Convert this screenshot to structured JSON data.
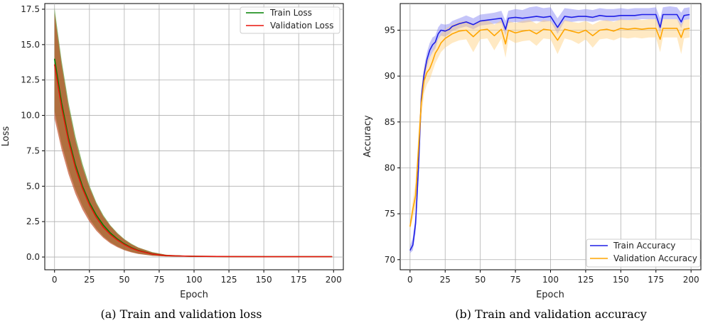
{
  "chart_data": [
    {
      "type": "line",
      "caption": "(a) Train and validation loss",
      "xlabel": "Epoch",
      "ylabel": "Loss",
      "xlim": [
        -7,
        207
      ],
      "ylim": [
        -0.9,
        17.9
      ],
      "xticks": [
        0,
        25,
        50,
        75,
        100,
        125,
        150,
        175,
        200
      ],
      "yticks": [
        0.0,
        2.5,
        5.0,
        7.5,
        10.0,
        12.5,
        15.0,
        17.5
      ],
      "ytick_labels": [
        "0.0",
        "2.5",
        "5.0",
        "7.5",
        "10.0",
        "12.5",
        "15.0",
        "17.5"
      ],
      "grid": true,
      "legend_position": "top-right",
      "series": [
        {
          "name": "Train Loss",
          "color": "#008000",
          "band_color": "#5a9a32",
          "x": [
            0,
            5,
            10,
            15,
            20,
            25,
            30,
            35,
            40,
            45,
            50,
            55,
            60,
            70,
            80,
            100,
            125,
            150,
            175,
            199
          ],
          "y": [
            14.0,
            10.9,
            8.4,
            6.5,
            5.0,
            3.85,
            2.95,
            2.25,
            1.7,
            1.27,
            0.93,
            0.67,
            0.47,
            0.22,
            0.1,
            0.05,
            0.03,
            0.02,
            0.02,
            0.02
          ],
          "lower": [
            10.3,
            8.0,
            6.2,
            4.75,
            3.6,
            2.7,
            2.0,
            1.45,
            1.05,
            0.75,
            0.52,
            0.36,
            0.24,
            0.1,
            0.05,
            0.02,
            0.01,
            0.01,
            0.01,
            0.01
          ],
          "upper": [
            17.6,
            13.9,
            10.9,
            8.5,
            6.6,
            5.05,
            3.85,
            2.95,
            2.25,
            1.7,
            1.27,
            0.94,
            0.68,
            0.35,
            0.16,
            0.07,
            0.04,
            0.03,
            0.03,
            0.03
          ]
        },
        {
          "name": "Validation Loss",
          "color": "#e8140c",
          "band_color": "#c0502a",
          "x": [
            0,
            5,
            10,
            15,
            20,
            25,
            30,
            35,
            40,
            45,
            50,
            55,
            60,
            70,
            80,
            100,
            125,
            150,
            175,
            199
          ],
          "y": [
            13.6,
            10.6,
            8.2,
            6.3,
            4.85,
            3.7,
            2.8,
            2.1,
            1.6,
            1.2,
            0.88,
            0.63,
            0.45,
            0.21,
            0.1,
            0.05,
            0.03,
            0.02,
            0.02,
            0.02
          ],
          "lower": [
            9.8,
            7.6,
            5.85,
            4.45,
            3.35,
            2.5,
            1.85,
            1.35,
            0.97,
            0.69,
            0.48,
            0.33,
            0.22,
            0.09,
            0.04,
            0.02,
            0.01,
            0.01,
            0.01,
            0.01
          ],
          "upper": [
            17.2,
            13.6,
            10.6,
            8.2,
            6.35,
            4.9,
            3.75,
            2.85,
            2.2,
            1.65,
            1.23,
            0.9,
            0.66,
            0.33,
            0.16,
            0.07,
            0.04,
            0.03,
            0.03,
            0.03
          ]
        }
      ]
    },
    {
      "type": "line",
      "caption": "(b) Train and validation accuracy",
      "xlabel": "Epoch",
      "ylabel": "Accuracy",
      "xlim": [
        -7,
        207
      ],
      "ylim": [
        68.9,
        97.9
      ],
      "xticks": [
        0,
        25,
        50,
        75,
        100,
        125,
        150,
        175,
        200
      ],
      "yticks": [
        70,
        75,
        80,
        85,
        90,
        95
      ],
      "ytick_labels": [
        "70",
        "75",
        "80",
        "85",
        "90",
        "95"
      ],
      "grid": true,
      "legend_position": "bottom-right",
      "series": [
        {
          "name": "Train Accuracy",
          "color": "#1f1fe6",
          "band_color": "#7f7ff2",
          "x": [
            0,
            2,
            4,
            6,
            8,
            10,
            12,
            14,
            16,
            18,
            20,
            22,
            25,
            28,
            30,
            35,
            40,
            45,
            50,
            55,
            60,
            65,
            68,
            70,
            75,
            80,
            85,
            90,
            95,
            100,
            105,
            110,
            115,
            120,
            125,
            130,
            135,
            140,
            145,
            150,
            155,
            160,
            165,
            170,
            175,
            178,
            180,
            185,
            190,
            193,
            195,
            199
          ],
          "y": [
            71.0,
            71.6,
            74.0,
            80.0,
            87.5,
            90.2,
            91.8,
            92.8,
            93.4,
            93.7,
            94.6,
            95.0,
            94.9,
            95.1,
            95.4,
            95.7,
            95.9,
            95.6,
            96.0,
            96.1,
            96.2,
            96.3,
            95.1,
            96.3,
            96.4,
            96.3,
            96.4,
            96.5,
            96.4,
            96.5,
            95.3,
            96.5,
            96.4,
            96.5,
            96.5,
            96.4,
            96.6,
            96.5,
            96.5,
            96.6,
            96.6,
            96.6,
            96.7,
            96.7,
            96.7,
            95.3,
            96.7,
            96.7,
            96.7,
            95.9,
            96.6,
            96.7
          ],
          "lower": [
            70.7,
            71.0,
            73.0,
            78.8,
            86.5,
            89.4,
            91.0,
            92.0,
            92.6,
            93.0,
            94.0,
            94.4,
            94.3,
            94.6,
            94.9,
            95.2,
            95.4,
            95.1,
            95.5,
            95.6,
            95.7,
            95.8,
            94.4,
            95.8,
            95.9,
            95.8,
            95.9,
            96.0,
            95.9,
            96.0,
            94.6,
            96.0,
            95.9,
            96.0,
            96.0,
            95.9,
            96.1,
            96.0,
            96.0,
            96.1,
            96.1,
            96.1,
            96.2,
            96.2,
            96.2,
            94.6,
            96.2,
            96.2,
            96.2,
            95.2,
            96.1,
            96.2
          ],
          "upper": [
            71.5,
            72.4,
            75.0,
            81.2,
            88.5,
            91.0,
            92.6,
            93.6,
            94.2,
            94.4,
            95.3,
            95.7,
            95.6,
            95.7,
            96.0,
            96.3,
            96.6,
            96.3,
            96.7,
            96.8,
            96.9,
            97.1,
            96.0,
            97.1,
            97.3,
            97.2,
            97.5,
            97.6,
            97.4,
            97.5,
            96.3,
            97.4,
            97.3,
            97.2,
            97.3,
            97.2,
            97.4,
            97.3,
            97.3,
            97.4,
            97.3,
            97.4,
            97.4,
            97.4,
            97.5,
            96.3,
            97.5,
            97.6,
            97.5,
            96.9,
            97.4,
            97.5
          ]
        },
        {
          "name": "Validation Accuracy",
          "color": "#ffa500",
          "band_color": "#ffcf7a",
          "x": [
            0,
            2,
            4,
            6,
            8,
            10,
            12,
            14,
            16,
            18,
            20,
            22,
            25,
            28,
            30,
            35,
            40,
            45,
            50,
            55,
            60,
            65,
            68,
            70,
            75,
            80,
            85,
            90,
            95,
            100,
            105,
            110,
            115,
            120,
            125,
            130,
            135,
            140,
            145,
            150,
            155,
            160,
            165,
            170,
            175,
            178,
            180,
            185,
            190,
            193,
            195,
            199
          ],
          "y": [
            73.6,
            75.5,
            77.0,
            82.0,
            87.0,
            89.5,
            90.4,
            90.8,
            91.6,
            92.5,
            93.0,
            93.6,
            94.1,
            94.4,
            94.6,
            94.9,
            95.0,
            94.3,
            95.0,
            95.1,
            94.4,
            95.1,
            93.5,
            95.0,
            94.7,
            94.9,
            95.0,
            94.6,
            95.1,
            95.0,
            93.9,
            95.1,
            94.9,
            94.7,
            95.0,
            94.4,
            95.0,
            95.1,
            94.9,
            95.2,
            95.1,
            95.2,
            95.1,
            95.2,
            95.2,
            94.0,
            95.2,
            95.2,
            95.2,
            94.2,
            95.1,
            95.2
          ],
          "lower": [
            73.2,
            74.5,
            75.6,
            80.2,
            85.4,
            88.1,
            89.1,
            89.6,
            90.5,
            91.4,
            92.0,
            92.6,
            93.1,
            93.4,
            93.6,
            93.9,
            94.0,
            92.6,
            94.0,
            94.1,
            92.8,
            94.1,
            92.0,
            94.0,
            93.6,
            93.8,
            93.9,
            93.3,
            94.1,
            94.0,
            92.4,
            94.1,
            93.9,
            93.5,
            94.0,
            93.1,
            94.0,
            94.1,
            93.9,
            94.2,
            94.1,
            94.2,
            94.1,
            94.2,
            94.2,
            92.6,
            94.2,
            94.2,
            94.2,
            92.4,
            94.1,
            94.2
          ],
          "upper": [
            74.0,
            76.5,
            78.4,
            83.8,
            88.6,
            90.9,
            91.7,
            92.0,
            92.7,
            93.6,
            94.0,
            94.6,
            95.1,
            95.4,
            95.6,
            95.9,
            96.0,
            95.5,
            96.0,
            96.1,
            95.6,
            96.1,
            94.8,
            96.0,
            95.8,
            96.0,
            96.1,
            95.7,
            96.1,
            96.0,
            95.2,
            96.1,
            95.9,
            95.8,
            96.0,
            95.6,
            96.0,
            96.1,
            95.9,
            96.2,
            96.1,
            96.2,
            96.1,
            96.2,
            96.2,
            95.3,
            96.2,
            96.2,
            96.2,
            95.6,
            96.1,
            96.2
          ]
        }
      ]
    }
  ]
}
